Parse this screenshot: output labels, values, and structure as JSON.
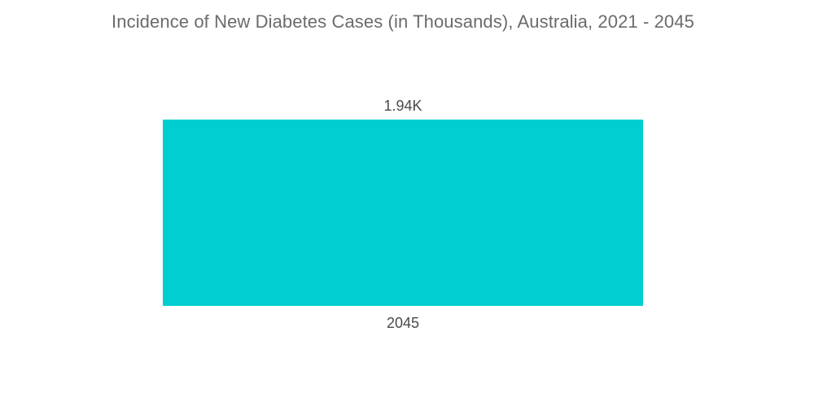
{
  "chart_data": {
    "type": "bar",
    "title": "Incidence of New Diabetes Cases (in Thousands), Australia, 2021 - 2045",
    "categories": [
      "2045"
    ],
    "values": [
      1.94
    ],
    "data_labels": [
      "1.94K"
    ],
    "xlabel": "",
    "ylabel": "",
    "ylim": [
      0,
      1.94
    ],
    "grid": false,
    "legend": "none",
    "colors": {
      "bar": "#00ced1",
      "text": "#4a4a4a",
      "title": "#6b6b6b"
    }
  }
}
